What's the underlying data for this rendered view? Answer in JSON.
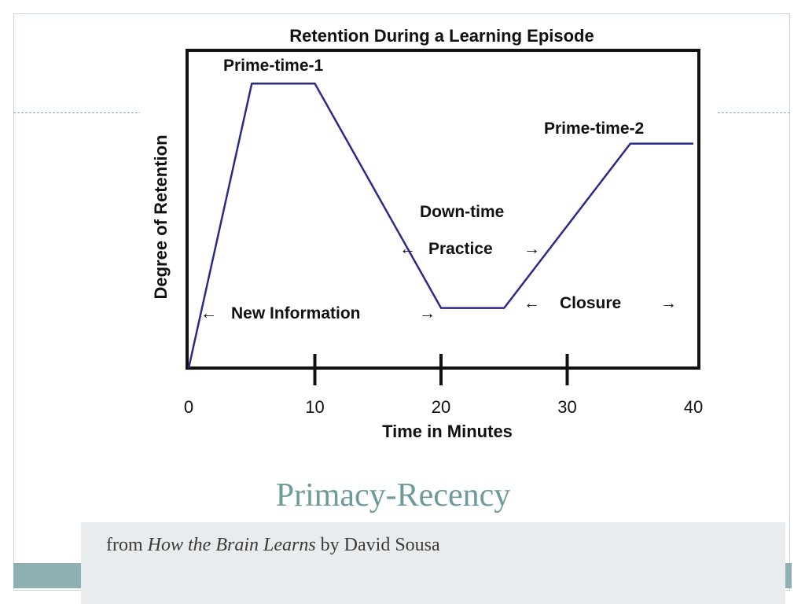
{
  "slide": {
    "title": "Primacy-Recency",
    "subtitle_prefix": "from ",
    "subtitle_book": "How the Brain Learns",
    "subtitle_suffix": " by David Sousa"
  },
  "colors": {
    "accent": "#6f9a9b",
    "bar": "#8fb0b2",
    "line": "#2a2a8a"
  },
  "chart_data": {
    "type": "line",
    "title": "Retention During a Learning Episode",
    "xlabel": "Time in Minutes",
    "ylabel": "Degree of Retention",
    "xlim": [
      0,
      40
    ],
    "ylim": [
      0,
      100
    ],
    "xticks": [
      0,
      10,
      20,
      30,
      40
    ],
    "grid": false,
    "series": [
      {
        "x": [
          0,
          5,
          10,
          20,
          25,
          35,
          40
        ],
        "y": [
          0,
          90,
          90,
          19,
          19,
          71,
          71
        ]
      }
    ],
    "annotations": {
      "prime1": "Prime-time-1",
      "prime2": "Prime-time-2",
      "downtime": "Down-time",
      "practice": "Practice",
      "new_info": "New Information",
      "closure": "Closure",
      "arrow_left": "←",
      "arrow_right": "→"
    }
  }
}
